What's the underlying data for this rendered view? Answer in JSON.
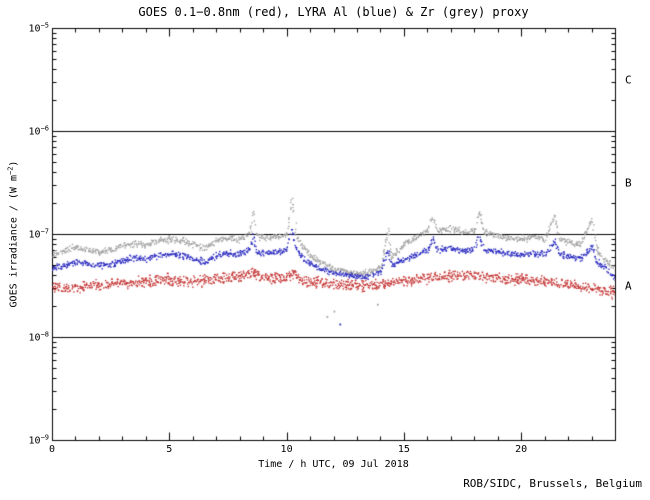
{
  "chart_data": {
    "type": "scatter",
    "title": "GOES 0.1−0.8nm (red), LYRA Al (blue) & Zr (grey) proxy",
    "xlabel": "Time / h UTC, 09 Jul 2018",
    "ylabel": {
      "prefix": "GOES irradiance / (W m",
      "sup": "−2",
      "suffix": ")"
    },
    "credit": "ROB/SIDC, Brussels, Belgium",
    "x_range": [
      0,
      24
    ],
    "x_major_ticks": [
      0,
      5,
      10,
      15,
      20
    ],
    "x_minor_step": 1,
    "y_tick_base": "10",
    "y_exp_top": -5,
    "y_exp_bottom": -9,
    "y_tick_exponents": [
      -5,
      -6,
      -7,
      -8,
      -9
    ],
    "class_line_exponents": [
      -6,
      -7,
      -8
    ],
    "flare_classes": [
      {
        "label": "C",
        "upper_exp": -5,
        "lower_exp": -6
      },
      {
        "label": "B",
        "upper_exp": -6,
        "lower_exp": -7
      },
      {
        "label": "A",
        "upper_exp": -7,
        "lower_exp": -8
      }
    ],
    "grid": false,
    "legend_position": "in-title",
    "series": [
      {
        "name": "LYRA Zr proxy",
        "color": "#a3a3a3",
        "scatter_dex": 0.03,
        "points": [
          [
            0,
            6.2e-08
          ],
          [
            0.3,
            6.8e-08
          ],
          [
            0.7,
            7.2e-08
          ],
          [
            1,
            7.5e-08
          ],
          [
            1.5,
            7.1e-08
          ],
          [
            2,
            6.8e-08
          ],
          [
            2.5,
            7.2e-08
          ],
          [
            3,
            7.8e-08
          ],
          [
            3.5,
            8.2e-08
          ],
          [
            4,
            8e-08
          ],
          [
            4.5,
            8.6e-08
          ],
          [
            5,
            9e-08
          ],
          [
            5.5,
            8.7e-08
          ],
          [
            6,
            8e-08
          ],
          [
            6.5,
            7.4e-08
          ],
          [
            7,
            8.8e-08
          ],
          [
            7.5,
            9.2e-08
          ],
          [
            8,
            9e-08
          ],
          [
            8.4,
            1.05e-07
          ],
          [
            8.55,
            1.7e-07
          ],
          [
            8.7,
            9.8e-08
          ],
          [
            9,
            9.2e-08
          ],
          [
            9.5,
            9.6e-08
          ],
          [
            10,
            1e-07
          ],
          [
            10.2,
            2.3e-07
          ],
          [
            10.35,
            1.05e-07
          ],
          [
            10.6,
            8e-08
          ],
          [
            11,
            6.2e-08
          ],
          [
            11.5,
            5.2e-08
          ],
          [
            12,
            4.6e-08
          ],
          [
            12.5,
            4.4e-08
          ],
          [
            13,
            4.1e-08
          ],
          [
            13.5,
            4.3e-08
          ],
          [
            14,
            4.8e-08
          ],
          [
            14.3,
            1.15e-07
          ],
          [
            14.45,
            6e-08
          ],
          [
            15,
            8e-08
          ],
          [
            15.5,
            9.5e-08
          ],
          [
            16,
            1.1e-07
          ],
          [
            16.2,
            1.5e-07
          ],
          [
            16.4,
            1.08e-07
          ],
          [
            17,
            1.15e-07
          ],
          [
            17.5,
            1.05e-07
          ],
          [
            18,
            1.1e-07
          ],
          [
            18.2,
            1.65e-07
          ],
          [
            18.4,
            1.05e-07
          ],
          [
            19,
            9.8e-08
          ],
          [
            19.5,
            9.2e-08
          ],
          [
            20,
            9e-08
          ],
          [
            20.5,
            9.4e-08
          ],
          [
            21,
            9e-08
          ],
          [
            21.4,
            1.5e-07
          ],
          [
            21.6,
            9e-08
          ],
          [
            22,
            8.6e-08
          ],
          [
            22.5,
            8e-08
          ],
          [
            23,
            1.4e-07
          ],
          [
            23.2,
            7e-08
          ],
          [
            23.6,
            5.6e-08
          ],
          [
            24,
            4.6e-08
          ]
        ]
      },
      {
        "name": "LYRA Al proxy",
        "color": "#2b2bc0",
        "scatter_dex": 0.03,
        "points": [
          [
            0,
            4.8e-08
          ],
          [
            0.5,
            5e-08
          ],
          [
            1,
            5.4e-08
          ],
          [
            1.5,
            5.2e-08
          ],
          [
            2,
            5e-08
          ],
          [
            2.5,
            5.2e-08
          ],
          [
            3,
            5.6e-08
          ],
          [
            3.5,
            6e-08
          ],
          [
            4,
            5.8e-08
          ],
          [
            4.5,
            6.2e-08
          ],
          [
            5,
            6.5e-08
          ],
          [
            5.5,
            6.3e-08
          ],
          [
            6,
            5.8e-08
          ],
          [
            6.5,
            5.4e-08
          ],
          [
            7,
            6.3e-08
          ],
          [
            7.5,
            6.6e-08
          ],
          [
            8,
            6.5e-08
          ],
          [
            8.4,
            7.2e-08
          ],
          [
            8.55,
            9.5e-08
          ],
          [
            8.7,
            6.8e-08
          ],
          [
            9,
            6.6e-08
          ],
          [
            9.5,
            6.8e-08
          ],
          [
            10,
            7e-08
          ],
          [
            10.2,
            1.15e-07
          ],
          [
            10.35,
            7.4e-08
          ],
          [
            10.6,
            6e-08
          ],
          [
            11,
            5.2e-08
          ],
          [
            11.5,
            4.6e-08
          ],
          [
            12,
            4.2e-08
          ],
          [
            12.5,
            4.1e-08
          ],
          [
            13,
            3.9e-08
          ],
          [
            13.5,
            4e-08
          ],
          [
            14,
            4.3e-08
          ],
          [
            14.3,
            7.2e-08
          ],
          [
            14.45,
            5e-08
          ],
          [
            15,
            5.8e-08
          ],
          [
            15.5,
            6.4e-08
          ],
          [
            16,
            7e-08
          ],
          [
            16.2,
            9.2e-08
          ],
          [
            16.4,
            7.1e-08
          ],
          [
            17,
            7.4e-08
          ],
          [
            17.5,
            7e-08
          ],
          [
            18,
            7.2e-08
          ],
          [
            18.2,
            9.6e-08
          ],
          [
            18.4,
            7e-08
          ],
          [
            19,
            6.8e-08
          ],
          [
            19.5,
            6.5e-08
          ],
          [
            20,
            6.4e-08
          ],
          [
            20.5,
            6.6e-08
          ],
          [
            21,
            6.4e-08
          ],
          [
            21.4,
            8.6e-08
          ],
          [
            21.6,
            6.4e-08
          ],
          [
            22,
            6.2e-08
          ],
          [
            22.5,
            5.8e-08
          ],
          [
            23,
            7.6e-08
          ],
          [
            23.2,
            5.4e-08
          ],
          [
            23.6,
            4.6e-08
          ],
          [
            24,
            3.8e-08
          ]
        ]
      },
      {
        "name": "GOES 0.1-0.8nm",
        "color": "#c43434",
        "scatter_dex": 0.05,
        "points": [
          [
            0,
            3e-08
          ],
          [
            1,
            3.1e-08
          ],
          [
            2,
            3.2e-08
          ],
          [
            3,
            3.4e-08
          ],
          [
            4,
            3.5e-08
          ],
          [
            5,
            3.6e-08
          ],
          [
            6,
            3.5e-08
          ],
          [
            7,
            3.7e-08
          ],
          [
            8,
            3.9e-08
          ],
          [
            8.55,
            4.3e-08
          ],
          [
            9,
            3.8e-08
          ],
          [
            10,
            3.8e-08
          ],
          [
            10.2,
            4.4e-08
          ],
          [
            10.5,
            3.7e-08
          ],
          [
            11,
            3.5e-08
          ],
          [
            12,
            3.3e-08
          ],
          [
            13,
            3.2e-08
          ],
          [
            14,
            3.3e-08
          ],
          [
            15,
            3.5e-08
          ],
          [
            16,
            3.8e-08
          ],
          [
            17,
            4e-08
          ],
          [
            18,
            4e-08
          ],
          [
            19,
            3.8e-08
          ],
          [
            20,
            3.6e-08
          ],
          [
            21,
            3.5e-08
          ],
          [
            22,
            3.3e-08
          ],
          [
            23,
            3e-08
          ],
          [
            23.5,
            2.9e-08
          ],
          [
            24,
            2.7e-08
          ]
        ]
      }
    ],
    "outliers": [
      {
        "x": 11.7,
        "v": 1.6e-08,
        "series": 0
      },
      {
        "x": 12.0,
        "v": 1.8e-08,
        "series": 0
      },
      {
        "x": 12.25,
        "v": 1.35e-08,
        "series": 1
      },
      {
        "x": 13.85,
        "v": 2.1e-08,
        "series": 0
      }
    ]
  }
}
